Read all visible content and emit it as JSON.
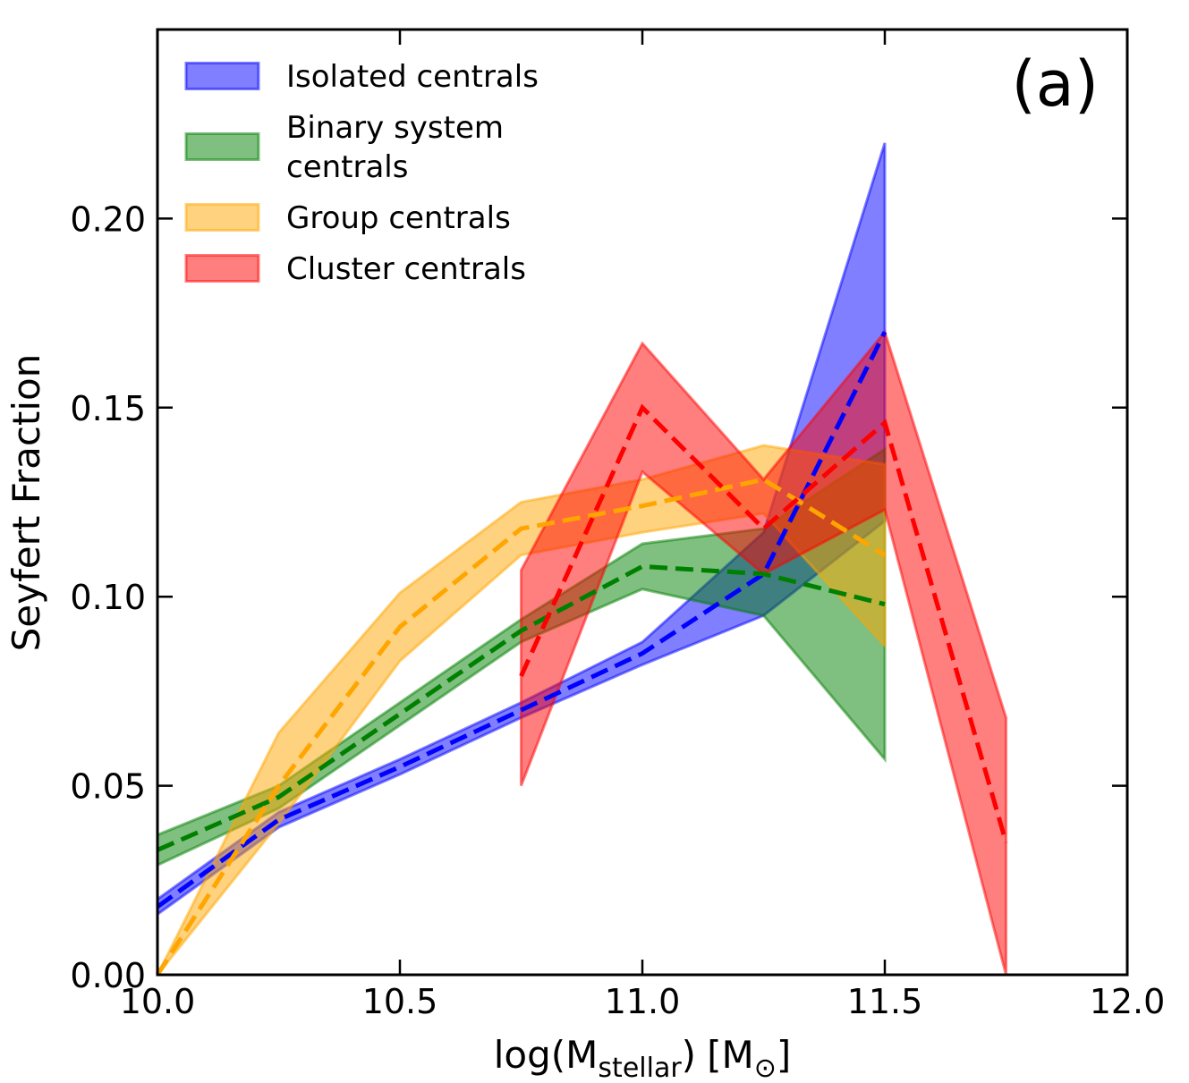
{
  "chart_data": {
    "type": "line",
    "title": "",
    "panel_label": "(a)",
    "xlabel": "log(M_stellar) [M_sun]",
    "xlabel_parts": {
      "main": "log(M",
      "sub": "stellar",
      "close": ")",
      "unit_open": "[M",
      "unit_sub": "⊙",
      "unit_close": "]"
    },
    "ylabel": "Seyfert Fraction",
    "xlim": [
      10.0,
      12.0
    ],
    "ylim": [
      0.0,
      0.25
    ],
    "xticks": [
      10.0,
      10.5,
      11.0,
      11.5,
      12.0
    ],
    "xtick_labels": [
      "10.0",
      "10.5",
      "11.0",
      "11.5",
      "12.0"
    ],
    "yticks": [
      0.0,
      0.05,
      0.1,
      0.15,
      0.2
    ],
    "ytick_labels": [
      "0.00",
      "0.05",
      "0.10",
      "0.15",
      "0.20"
    ],
    "legend_position": "top-left",
    "series": [
      {
        "name": "Isolated centrals",
        "legend_lines": [
          "Isolated centrals"
        ],
        "color": "#0000ff",
        "x": [
          10.0,
          10.25,
          10.5,
          10.75,
          11.0,
          11.25,
          11.5
        ],
        "mean": [
          0.018,
          0.041,
          0.055,
          0.07,
          0.085,
          0.106,
          0.17
        ],
        "lower": [
          0.016,
          0.039,
          0.053,
          0.068,
          0.082,
          0.095,
          0.12
        ],
        "upper": [
          0.02,
          0.043,
          0.057,
          0.072,
          0.088,
          0.117,
          0.22
        ]
      },
      {
        "name": "Binary system centrals",
        "legend_lines": [
          "Binary system",
          "centrals"
        ],
        "color": "#008000",
        "x": [
          10.0,
          10.25,
          10.5,
          10.75,
          11.0,
          11.25,
          11.5
        ],
        "mean": [
          0.033,
          0.047,
          0.069,
          0.091,
          0.108,
          0.106,
          0.098
        ],
        "lower": [
          0.029,
          0.044,
          0.066,
          0.088,
          0.102,
          0.095,
          0.057
        ],
        "upper": [
          0.037,
          0.05,
          0.072,
          0.094,
          0.114,
          0.118,
          0.139
        ]
      },
      {
        "name": "Group centrals",
        "legend_lines": [
          "Group centrals"
        ],
        "color": "#ffa500",
        "x": [
          10.0,
          10.25,
          10.5,
          10.75,
          11.0,
          11.25,
          11.5
        ],
        "mean": [
          0.0,
          0.05,
          0.092,
          0.118,
          0.124,
          0.131,
          0.111
        ],
        "lower": [
          0.0,
          0.04,
          0.083,
          0.111,
          0.117,
          0.122,
          0.087
        ],
        "upper": [
          0.0,
          0.064,
          0.101,
          0.125,
          0.131,
          0.14,
          0.135
        ]
      },
      {
        "name": "Cluster centrals",
        "legend_lines": [
          "Cluster centrals"
        ],
        "color": "#ff0000",
        "x": [
          10.75,
          11.0,
          11.25,
          11.5,
          11.75
        ],
        "mean": [
          0.079,
          0.15,
          0.118,
          0.146,
          0.035
        ],
        "lower": [
          0.05,
          0.133,
          0.106,
          0.123,
          0.0
        ],
        "upper": [
          0.107,
          0.167,
          0.131,
          0.17,
          0.068
        ]
      }
    ]
  }
}
